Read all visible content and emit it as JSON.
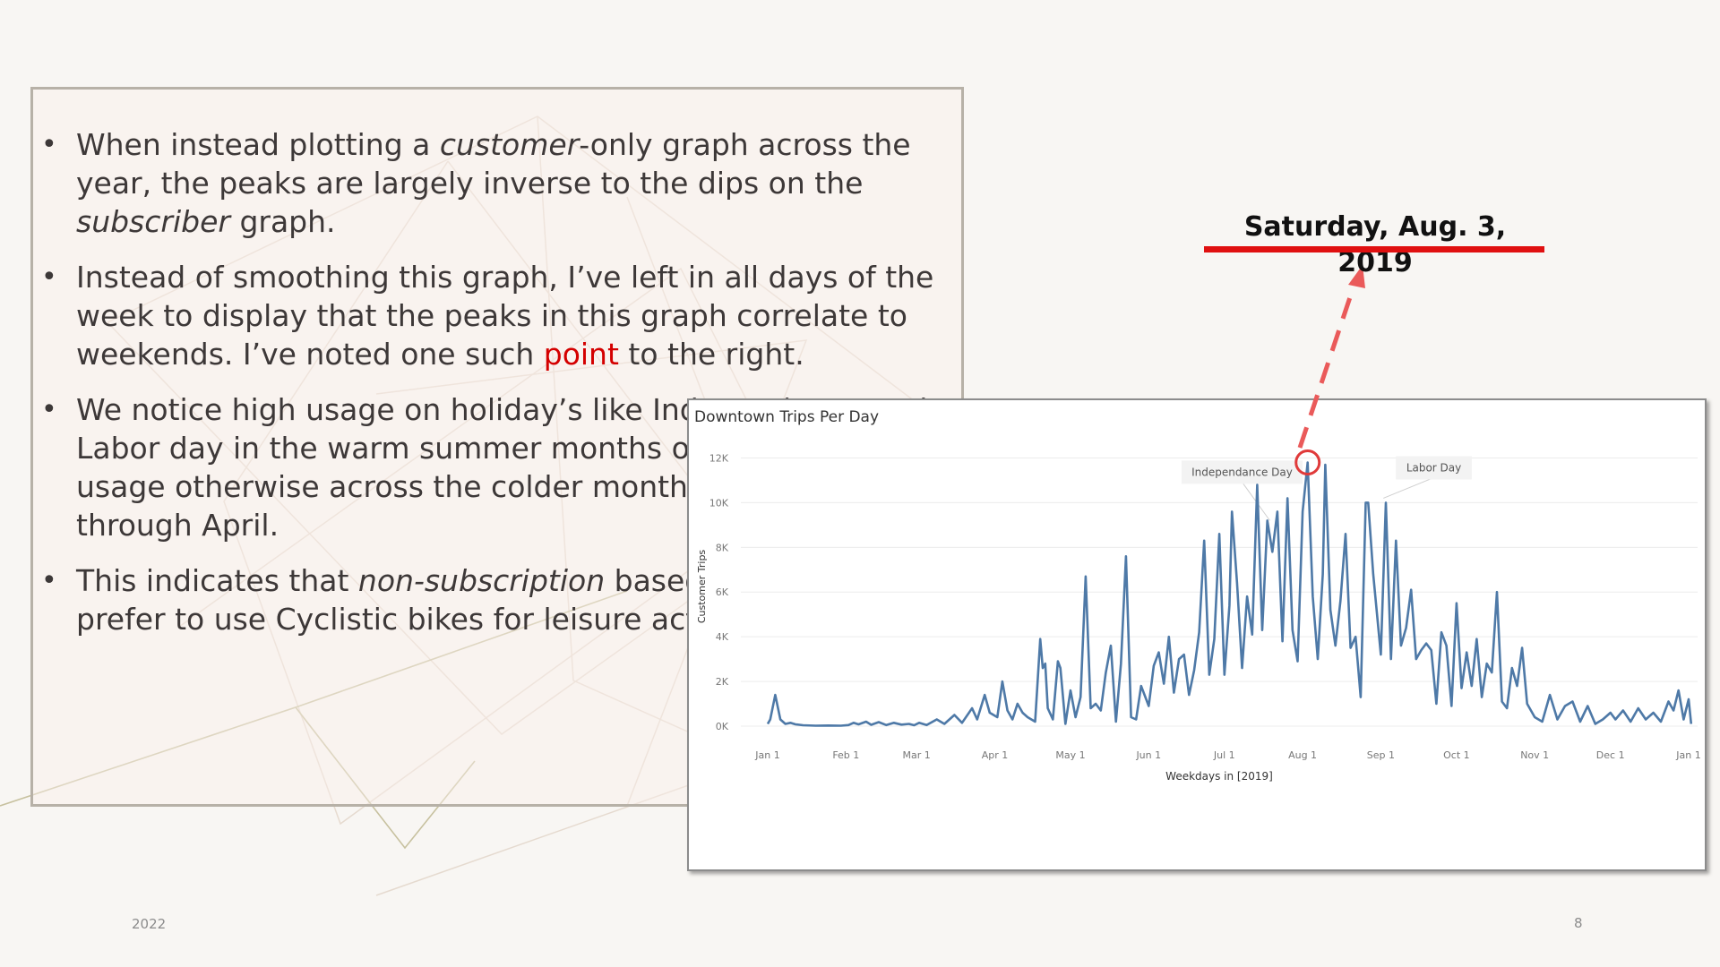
{
  "slide": {
    "bullets": [
      [
        {
          "text": "When instead plotting a ",
          "style": "normal"
        },
        {
          "text": "customer",
          "style": "italic"
        },
        {
          "text": "-only graph across the year, the peaks are largely inverse to the dips on the ",
          "style": "normal"
        },
        {
          "text": "subscriber",
          "style": "italic"
        },
        {
          "text": " graph.",
          "style": "normal"
        }
      ],
      [
        {
          "text": "Instead of smoothing this graph, I’ve left in all days of the week to display that the peaks in this graph correlate to weekends. I’ve noted one such ",
          "style": "normal"
        },
        {
          "text": "point",
          "style": "red"
        },
        {
          "text": " to the right.",
          "style": "normal"
        }
      ],
      [
        {
          "text": "We notice high usage on holiday’s like Independence and Labor day in the warm summer months of 2019, but low usage otherwise across the colder months of November through April.",
          "style": "normal"
        }
      ],
      [
        {
          "text": "This indicates that ",
          "style": "normal"
        },
        {
          "text": "non-subscription",
          "style": "italic"
        },
        {
          "text": " based customers prefer to use Cyclistic bikes for leisure activities.",
          "style": "normal"
        }
      ]
    ],
    "callout": "Saturday, Aug. 3, 2019",
    "footer_year": "2022",
    "page_number": "8"
  },
  "colors": {
    "line": "#4e79a7",
    "highlight": "#e03a3a",
    "callout_underline": "#e01010",
    "arrow": "#ea5a5a"
  },
  "chart_data": {
    "type": "line",
    "title": "Downtown Trips Per Day",
    "xlabel": "Weekdays in [2019]",
    "ylabel": "Customer Trips",
    "ylim": [
      0,
      12500
    ],
    "y_ticks": [
      {
        "value": 0,
        "label": "0K"
      },
      {
        "value": 2000,
        "label": "2K"
      },
      {
        "value": 4000,
        "label": "4K"
      },
      {
        "value": 6000,
        "label": "6K"
      },
      {
        "value": 8000,
        "label": "8K"
      },
      {
        "value": 10000,
        "label": "10K"
      },
      {
        "value": 12000,
        "label": "12K"
      }
    ],
    "xlim": [
      "2019-01-01",
      "2020-01-01"
    ],
    "x_ticks": [
      {
        "date": "2019-01-01",
        "label": "Jan 1"
      },
      {
        "date": "2019-02-01",
        "label": "Feb 1"
      },
      {
        "date": "2019-03-01",
        "label": "Mar 1"
      },
      {
        "date": "2019-04-01",
        "label": "Apr 1"
      },
      {
        "date": "2019-05-01",
        "label": "May 1"
      },
      {
        "date": "2019-06-01",
        "label": "Jun 1"
      },
      {
        "date": "2019-07-01",
        "label": "Jul 1"
      },
      {
        "date": "2019-08-01",
        "label": "Aug 1"
      },
      {
        "date": "2019-09-01",
        "label": "Sep 1"
      },
      {
        "date": "2019-10-01",
        "label": "Oct 1"
      },
      {
        "date": "2019-11-01",
        "label": "Nov 1"
      },
      {
        "date": "2019-12-01",
        "label": "Dec 1"
      },
      {
        "date": "2020-01-01",
        "label": "Jan 1"
      }
    ],
    "grid": true,
    "series": [
      {
        "points": [
          [
            "2019-01-01",
            100
          ],
          [
            "2019-01-02",
            300
          ],
          [
            "2019-01-04",
            1400
          ],
          [
            "2019-01-06",
            300
          ],
          [
            "2019-01-08",
            100
          ],
          [
            "2019-01-10",
            150
          ],
          [
            "2019-01-12",
            80
          ],
          [
            "2019-01-15",
            40
          ],
          [
            "2019-01-20",
            20
          ],
          [
            "2019-01-25",
            30
          ],
          [
            "2019-01-30",
            20
          ],
          [
            "2019-02-02",
            50
          ],
          [
            "2019-02-04",
            150
          ],
          [
            "2019-02-06",
            80
          ],
          [
            "2019-02-09",
            200
          ],
          [
            "2019-02-11",
            60
          ],
          [
            "2019-02-14",
            180
          ],
          [
            "2019-02-17",
            50
          ],
          [
            "2019-02-20",
            150
          ],
          [
            "2019-02-23",
            70
          ],
          [
            "2019-02-26",
            100
          ],
          [
            "2019-02-28",
            40
          ],
          [
            "2019-03-02",
            150
          ],
          [
            "2019-03-05",
            50
          ],
          [
            "2019-03-09",
            300
          ],
          [
            "2019-03-12",
            100
          ],
          [
            "2019-03-16",
            500
          ],
          [
            "2019-03-19",
            150
          ],
          [
            "2019-03-23",
            800
          ],
          [
            "2019-03-25",
            300
          ],
          [
            "2019-03-28",
            1400
          ],
          [
            "2019-03-30",
            600
          ],
          [
            "2019-04-02",
            400
          ],
          [
            "2019-04-04",
            2000
          ],
          [
            "2019-04-06",
            700
          ],
          [
            "2019-04-08",
            300
          ],
          [
            "2019-04-10",
            1000
          ],
          [
            "2019-04-12",
            600
          ],
          [
            "2019-04-14",
            400
          ],
          [
            "2019-04-17",
            200
          ],
          [
            "2019-04-19",
            3900
          ],
          [
            "2019-04-20",
            2600
          ],
          [
            "2019-04-21",
            2800
          ],
          [
            "2019-04-22",
            800
          ],
          [
            "2019-04-24",
            300
          ],
          [
            "2019-04-26",
            2900
          ],
          [
            "2019-04-27",
            2600
          ],
          [
            "2019-04-29",
            100
          ],
          [
            "2019-05-01",
            1600
          ],
          [
            "2019-05-03",
            400
          ],
          [
            "2019-05-05",
            1300
          ],
          [
            "2019-05-07",
            6700
          ],
          [
            "2019-05-09",
            800
          ],
          [
            "2019-05-11",
            1000
          ],
          [
            "2019-05-13",
            700
          ],
          [
            "2019-05-15",
            2400
          ],
          [
            "2019-05-17",
            3600
          ],
          [
            "2019-05-19",
            200
          ],
          [
            "2019-05-21",
            2800
          ],
          [
            "2019-05-23",
            7600
          ],
          [
            "2019-05-25",
            400
          ],
          [
            "2019-05-27",
            300
          ],
          [
            "2019-05-29",
            1800
          ],
          [
            "2019-06-01",
            900
          ],
          [
            "2019-06-03",
            2700
          ],
          [
            "2019-06-05",
            3300
          ],
          [
            "2019-06-07",
            1900
          ],
          [
            "2019-06-09",
            4000
          ],
          [
            "2019-06-11",
            1500
          ],
          [
            "2019-06-13",
            3000
          ],
          [
            "2019-06-15",
            3200
          ],
          [
            "2019-06-17",
            1400
          ],
          [
            "2019-06-19",
            2500
          ],
          [
            "2019-06-21",
            4200
          ],
          [
            "2019-06-23",
            8300
          ],
          [
            "2019-06-25",
            2300
          ],
          [
            "2019-06-27",
            3900
          ],
          [
            "2019-06-29",
            8600
          ],
          [
            "2019-07-01",
            2300
          ],
          [
            "2019-07-03",
            5400
          ],
          [
            "2019-07-04",
            9600
          ],
          [
            "2019-07-06",
            6400
          ],
          [
            "2019-07-08",
            2600
          ],
          [
            "2019-07-10",
            5800
          ],
          [
            "2019-07-12",
            4100
          ],
          [
            "2019-07-14",
            10800
          ],
          [
            "2019-07-16",
            4300
          ],
          [
            "2019-07-18",
            9200
          ],
          [
            "2019-07-20",
            7800
          ],
          [
            "2019-07-22",
            9600
          ],
          [
            "2019-07-24",
            3800
          ],
          [
            "2019-07-26",
            10200
          ],
          [
            "2019-07-28",
            4300
          ],
          [
            "2019-07-30",
            2900
          ],
          [
            "2019-08-01",
            9600
          ],
          [
            "2019-08-03",
            11800
          ],
          [
            "2019-08-05",
            5800
          ],
          [
            "2019-08-07",
            3000
          ],
          [
            "2019-08-09",
            6800
          ],
          [
            "2019-08-10",
            11700
          ],
          [
            "2019-08-12",
            5200
          ],
          [
            "2019-08-14",
            3600
          ],
          [
            "2019-08-16",
            5600
          ],
          [
            "2019-08-18",
            8600
          ],
          [
            "2019-08-20",
            3500
          ],
          [
            "2019-08-22",
            4000
          ],
          [
            "2019-08-24",
            1300
          ],
          [
            "2019-08-26",
            10000
          ],
          [
            "2019-08-27",
            10000
          ],
          [
            "2019-08-29",
            6800
          ],
          [
            "2019-09-01",
            3200
          ],
          [
            "2019-09-03",
            10000
          ],
          [
            "2019-09-05",
            3000
          ],
          [
            "2019-09-07",
            8300
          ],
          [
            "2019-09-09",
            3600
          ],
          [
            "2019-09-11",
            4400
          ],
          [
            "2019-09-13",
            6100
          ],
          [
            "2019-09-15",
            3000
          ],
          [
            "2019-09-17",
            3400
          ],
          [
            "2019-09-19",
            3700
          ],
          [
            "2019-09-21",
            3400
          ],
          [
            "2019-09-23",
            1000
          ],
          [
            "2019-09-25",
            4200
          ],
          [
            "2019-09-27",
            3600
          ],
          [
            "2019-09-29",
            900
          ],
          [
            "2019-10-01",
            5500
          ],
          [
            "2019-10-03",
            1700
          ],
          [
            "2019-10-05",
            3300
          ],
          [
            "2019-10-07",
            1800
          ],
          [
            "2019-10-09",
            3900
          ],
          [
            "2019-10-11",
            1300
          ],
          [
            "2019-10-13",
            2800
          ],
          [
            "2019-10-15",
            2400
          ],
          [
            "2019-10-17",
            6000
          ],
          [
            "2019-10-19",
            1100
          ],
          [
            "2019-10-21",
            800
          ],
          [
            "2019-10-23",
            2600
          ],
          [
            "2019-10-25",
            1800
          ],
          [
            "2019-10-27",
            3500
          ],
          [
            "2019-10-29",
            1000
          ],
          [
            "2019-11-01",
            400
          ],
          [
            "2019-11-04",
            200
          ],
          [
            "2019-11-07",
            1400
          ],
          [
            "2019-11-10",
            300
          ],
          [
            "2019-11-13",
            900
          ],
          [
            "2019-11-16",
            1100
          ],
          [
            "2019-11-19",
            200
          ],
          [
            "2019-11-22",
            900
          ],
          [
            "2019-11-25",
            100
          ],
          [
            "2019-11-28",
            300
          ],
          [
            "2019-12-01",
            600
          ],
          [
            "2019-12-03",
            300
          ],
          [
            "2019-12-06",
            700
          ],
          [
            "2019-12-09",
            200
          ],
          [
            "2019-12-12",
            800
          ],
          [
            "2019-12-15",
            300
          ],
          [
            "2019-12-18",
            600
          ],
          [
            "2019-12-21",
            200
          ],
          [
            "2019-12-24",
            1100
          ],
          [
            "2019-12-26",
            700
          ],
          [
            "2019-12-28",
            1600
          ],
          [
            "2019-12-30",
            300
          ],
          [
            "2020-01-01",
            1200
          ],
          [
            "2020-01-02",
            100
          ]
        ]
      }
    ],
    "annotations": [
      {
        "label": "Independance Day",
        "date": "2019-07-08",
        "value": 11400,
        "target_date": "2019-07-19",
        "target_value": 9200
      },
      {
        "label": "Labor Day",
        "date": "2019-09-22",
        "value": 11600,
        "target_date": "2019-09-02",
        "target_value": 10200
      }
    ],
    "highlight": {
      "date": "2019-08-03",
      "value": 11800
    }
  }
}
